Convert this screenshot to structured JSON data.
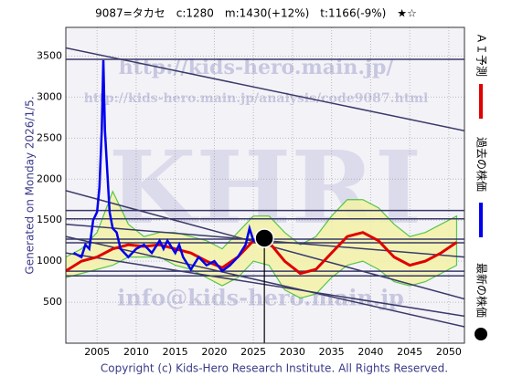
{
  "chart_data": {
    "type": "line",
    "title": "9087=タカセ　c:1280　m:1430(+12%)　t:1166(-9%)　★☆",
    "side_label": "Generated on Monday 2026/1/5.",
    "footer": "Copyright (c) Kids-Hero Research Institute. All Rights Reserved.",
    "watermarks": [
      "http://kids-hero.main.jp/",
      "http://kids-hero.main.jp/analysis/code9087.html",
      "KHRI",
      "info@kids-hero.main.jp"
    ],
    "xlim": [
      2001,
      2052
    ],
    "ylim": [
      0,
      3850
    ],
    "xticks": [
      2005,
      2010,
      2015,
      2020,
      2025,
      2030,
      2035,
      2040,
      2045,
      2050
    ],
    "yticks": [
      500,
      1000,
      1500,
      2000,
      2500,
      3000,
      3500
    ],
    "grid": true,
    "band": {
      "color": "#f3f3a8",
      "edge": "#3cbf2a",
      "x": [
        2001,
        2003,
        2005,
        2007,
        2009,
        2011,
        2013,
        2015,
        2017,
        2019,
        2021,
        2023,
        2025,
        2027,
        2029,
        2031,
        2033,
        2035,
        2037,
        2039,
        2041,
        2043,
        2045,
        2047,
        2049,
        2051
      ],
      "low": [
        800,
        850,
        900,
        950,
        1050,
        1050,
        1050,
        950,
        900,
        800,
        700,
        800,
        1000,
        950,
        650,
        550,
        600,
        800,
        950,
        1000,
        900,
        750,
        700,
        750,
        850,
        950
      ],
      "high": [
        1050,
        1150,
        1350,
        1850,
        1450,
        1300,
        1350,
        1350,
        1300,
        1250,
        1150,
        1350,
        1550,
        1550,
        1350,
        1200,
        1300,
        1550,
        1750,
        1750,
        1650,
        1450,
        1300,
        1350,
        1450,
        1550
      ]
    },
    "series": [
      {
        "name": "ＡＩ予測",
        "color": "#e00000",
        "x": [
          2001,
          2003,
          2005,
          2007,
          2009,
          2011,
          2013,
          2015,
          2017,
          2019,
          2021,
          2023,
          2025,
          2027,
          2029,
          2031,
          2033,
          2035,
          2037,
          2039,
          2041,
          2043,
          2045,
          2047,
          2049,
          2051
        ],
        "values": [
          880,
          1000,
          1050,
          1150,
          1200,
          1180,
          1200,
          1150,
          1100,
          1000,
          920,
          1050,
          1250,
          1230,
          1000,
          850,
          900,
          1100,
          1300,
          1350,
          1250,
          1050,
          950,
          1000,
          1100,
          1230
        ]
      },
      {
        "name": "過去の株価",
        "color": "#0000ee",
        "x": [
          2002,
          2003,
          2003.5,
          2004,
          2004.5,
          2005,
          2005.3,
          2005.6,
          2005.8,
          2006,
          2006.3,
          2006.6,
          2007,
          2007.5,
          2008,
          2009,
          2010,
          2011,
          2012,
          2013,
          2013.5,
          2014,
          2015,
          2015.5,
          2016,
          2017,
          2018,
          2019,
          2020,
          2021,
          2022,
          2023,
          2024,
          2024.5,
          2025,
          2026
        ],
        "values": [
          1100,
          1050,
          1200,
          1150,
          1500,
          1600,
          1900,
          2600,
          3450,
          2600,
          2100,
          1600,
          1400,
          1350,
          1150,
          1050,
          1150,
          1200,
          1100,
          1250,
          1150,
          1250,
          1100,
          1200,
          1050,
          900,
          1050,
          950,
          1000,
          880,
          950,
          1050,
          1200,
          1400,
          1250,
          1280
        ]
      }
    ],
    "latest": {
      "name": "最新の株価",
      "x": 2026.4,
      "y": 1280,
      "color": "#000000"
    },
    "hlines": [
      3460,
      1617,
      1516,
      1269,
      1224,
      877,
      821
    ],
    "trend_lines": [
      {
        "x": [
          2001,
          2052
        ],
        "y": [
          3600,
          2590
        ]
      },
      {
        "x": [
          2001,
          2052
        ],
        "y": [
          1860,
          540
        ]
      },
      {
        "x": [
          2001,
          2052
        ],
        "y": [
          1450,
          1050
        ]
      },
      {
        "x": [
          2001,
          2052
        ],
        "y": [
          1300,
          200
        ]
      },
      {
        "x": [
          2001,
          2052
        ],
        "y": [
          1100,
          330
        ]
      }
    ]
  }
}
